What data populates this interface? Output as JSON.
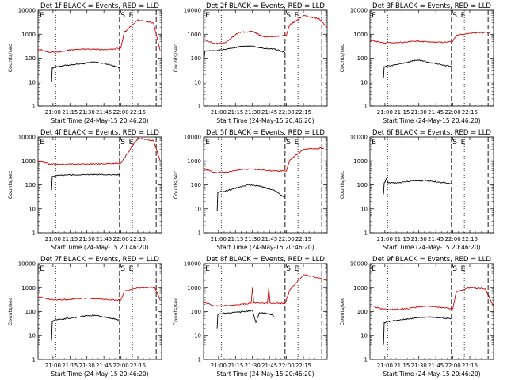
{
  "figure": {
    "x_ticks": [
      "21:00",
      "21:15",
      "21:30",
      "21:45",
      "22:00",
      "22:15"
    ],
    "y_ticks": [
      "1",
      "10",
      "100",
      "1000",
      "10000"
    ],
    "markers": [
      "E",
      "S",
      "E"
    ],
    "colors": {
      "events": "#000000",
      "lld": "#d00000"
    }
  },
  "chart_data": [
    {
      "type": "line",
      "title": "Det 1f BLACK = Events, RED = LLD",
      "xlabel": "Start Time (24-May-15 20:46:20)",
      "ylabel": "Counts/sec",
      "yscale": "log",
      "ylim": [
        1,
        10000
      ],
      "x_ticks": [
        "21:00",
        "21:15",
        "21:30",
        "21:45",
        "22:00",
        "22:15"
      ],
      "series": [
        {
          "values": [
            [
              20.98,
              10
            ],
            [
              20.99,
              40
            ],
            [
              21.05,
              45
            ],
            [
              21.3,
              55
            ],
            [
              21.45,
              60
            ],
            [
              21.62,
              70
            ],
            [
              21.82,
              55
            ],
            [
              21.98,
              40
            ]
          ]
        },
        {
          "values": [
            [
              20.78,
              240
            ],
            [
              20.95,
              175
            ],
            [
              21.1,
              185
            ],
            [
              21.3,
              230
            ],
            [
              21.48,
              240
            ],
            [
              21.62,
              230
            ],
            [
              21.82,
              230
            ],
            [
              22.0,
              260
            ],
            [
              22.05,
              1200
            ],
            [
              22.25,
              4000
            ],
            [
              22.48,
              3000
            ],
            [
              22.58,
              200
            ]
          ]
        }
      ]
    },
    {
      "type": "line",
      "title": "Det 2f BLACK = Events, RED = LLD",
      "xlabel": "Start Time (24-May-15 20:46:20)",
      "ylabel": "Counts/sec",
      "yscale": "log",
      "ylim": [
        1,
        10000
      ],
      "x_ticks": [
        "21:00",
        "21:15",
        "21:30",
        "21:45",
        "22:00",
        "22:15"
      ],
      "series": [
        {
          "values": [
            [
              20.78,
              60
            ],
            [
              20.8,
              200
            ],
            [
              21.05,
              220
            ],
            [
              21.3,
              300
            ],
            [
              21.5,
              320
            ],
            [
              21.65,
              260
            ],
            [
              21.82,
              240
            ],
            [
              21.98,
              170
            ]
          ]
        },
        {
          "values": [
            [
              20.78,
              600
            ],
            [
              20.95,
              400
            ],
            [
              21.1,
              450
            ],
            [
              21.3,
              1200
            ],
            [
              21.5,
              1300
            ],
            [
              21.65,
              800
            ],
            [
              21.82,
              800
            ],
            [
              22.0,
              900
            ],
            [
              22.05,
              2500
            ],
            [
              22.25,
              6000
            ],
            [
              22.48,
              4500
            ],
            [
              22.6,
              2000
            ]
          ]
        }
      ]
    },
    {
      "type": "line",
      "title": "Det 3f BLACK = Events, RED = LLD",
      "xlabel": "Start Time (24-May-15 20:46:20)",
      "ylabel": "Counts/sec",
      "yscale": "log",
      "ylim": [
        1,
        10000
      ],
      "x_ticks": [
        "21:00",
        "21:15",
        "21:30",
        "21:45",
        "22:00",
        "22:15"
      ],
      "series": [
        {
          "values": [
            [
              20.98,
              15
            ],
            [
              20.99,
              45
            ],
            [
              21.1,
              50
            ],
            [
              21.3,
              65
            ],
            [
              21.48,
              85
            ],
            [
              21.62,
              70
            ],
            [
              21.82,
              55
            ],
            [
              21.98,
              45
            ]
          ]
        },
        {
          "values": [
            [
              20.78,
              550
            ],
            [
              20.95,
              450
            ],
            [
              21.1,
              440
            ],
            [
              21.3,
              460
            ],
            [
              21.48,
              520
            ],
            [
              21.62,
              480
            ],
            [
              21.82,
              460
            ],
            [
              22.0,
              500
            ],
            [
              22.05,
              900
            ],
            [
              22.25,
              1100
            ],
            [
              22.55,
              1200
            ]
          ]
        }
      ]
    },
    {
      "type": "line",
      "title": "Det 4f BLACK = Events, RED = LLD",
      "xlabel": "Start Time (24-May-15 20:46:20)",
      "ylabel": "Counts/sec",
      "yscale": "log",
      "ylim": [
        1,
        10000
      ],
      "x_ticks": [
        "21:00",
        "21:15",
        "21:30",
        "21:45",
        "22:00",
        "22:15"
      ],
      "series": [
        {
          "values": [
            [
              20.98,
              60
            ],
            [
              20.99,
              230
            ],
            [
              21.1,
              250
            ],
            [
              21.3,
              260
            ],
            [
              21.5,
              270
            ],
            [
              21.7,
              265
            ],
            [
              21.98,
              260
            ]
          ]
        },
        {
          "values": [
            [
              20.78,
              1000
            ],
            [
              20.95,
              750
            ],
            [
              21.1,
              720
            ],
            [
              21.3,
              730
            ],
            [
              21.5,
              740
            ],
            [
              21.7,
              760
            ],
            [
              22.0,
              800
            ],
            [
              22.05,
              1300
            ],
            [
              22.25,
              9000
            ],
            [
              22.48,
              7000
            ],
            [
              22.58,
              1000
            ]
          ]
        }
      ]
    },
    {
      "type": "line",
      "title": "Det 5f BLACK = Events, RED = LLD",
      "xlabel": "Start Time (24-May-15 20:46:20)",
      "ylabel": "Counts/sec",
      "yscale": "log",
      "ylim": [
        1,
        10000
      ],
      "x_ticks": [
        "21:00",
        "21:15",
        "21:30",
        "21:45",
        "22:00",
        "22:15"
      ],
      "series": [
        {
          "values": [
            [
              20.98,
              8
            ],
            [
              20.99,
              50
            ],
            [
              21.1,
              55
            ],
            [
              21.3,
              80
            ],
            [
              21.45,
              100
            ],
            [
              21.62,
              85
            ],
            [
              21.82,
              60
            ],
            [
              21.98,
              30
            ]
          ]
        },
        {
          "values": [
            [
              20.78,
              450
            ],
            [
              20.95,
              330
            ],
            [
              21.1,
              340
            ],
            [
              21.3,
              420
            ],
            [
              21.48,
              470
            ],
            [
              21.62,
              430
            ],
            [
              21.82,
              380
            ],
            [
              22.0,
              380
            ],
            [
              22.05,
              1100
            ],
            [
              22.25,
              3000
            ],
            [
              22.55,
              3500
            ]
          ]
        }
      ]
    },
    {
      "type": "line",
      "title": "Det 6f BLACK = Events, RED = LLD",
      "xlabel": "Start Time (24-May-15 20:46:20)",
      "ylabel": "Counts/sec",
      "yscale": "log",
      "ylim": [
        1,
        10000
      ],
      "x_ticks": [
        "21:00",
        "21:15",
        "21:30",
        "21:45",
        "22:00",
        "22:15"
      ],
      "series": [
        {
          "values": [
            [
              20.98,
              40
            ],
            [
              20.99,
              120
            ],
            [
              21.02,
              180
            ],
            [
              21.05,
              120
            ],
            [
              21.2,
              120
            ],
            [
              21.4,
              150
            ],
            [
              21.6,
              150
            ],
            [
              21.8,
              130
            ],
            [
              21.98,
              110
            ]
          ]
        }
      ]
    },
    {
      "type": "line",
      "title": "Det 7f BLACK = Events, RED = LLD",
      "xlabel": "Start Time (24-May-15 20:46:20)",
      "ylabel": "Counts/sec",
      "yscale": "log",
      "ylim": [
        1,
        10000
      ],
      "x_ticks": [
        "21:00",
        "21:15",
        "21:30",
        "21:45",
        "22:00",
        "22:15"
      ],
      "series": [
        {
          "values": [
            [
              20.98,
              6
            ],
            [
              20.99,
              40
            ],
            [
              21.05,
              45
            ],
            [
              21.3,
              55
            ],
            [
              21.45,
              65
            ],
            [
              21.62,
              70
            ],
            [
              21.82,
              55
            ],
            [
              21.98,
              45
            ]
          ]
        },
        {
          "values": [
            [
              20.78,
              420
            ],
            [
              20.95,
              320
            ],
            [
              21.1,
              310
            ],
            [
              21.3,
              330
            ],
            [
              21.48,
              360
            ],
            [
              21.62,
              330
            ],
            [
              21.82,
              320
            ],
            [
              22.0,
              300
            ],
            [
              22.05,
              700
            ],
            [
              22.25,
              1000
            ],
            [
              22.5,
              1000
            ],
            [
              22.58,
              300
            ]
          ]
        }
      ]
    },
    {
      "type": "line",
      "title": "Det 8f BLACK = Events, RED = LLD",
      "xlabel": "Start Time (24-May-15 20:46:20)",
      "ylabel": "Counts/sec",
      "yscale": "log",
      "ylim": [
        1,
        10000
      ],
      "x_ticks": [
        "21:00",
        "21:15",
        "21:30",
        "21:45",
        "22:00",
        "22:15"
      ],
      "series": [
        {
          "values": [
            [
              20.98,
              20
            ],
            [
              20.99,
              80
            ],
            [
              21.1,
              85
            ],
            [
              21.3,
              95
            ],
            [
              21.5,
              110
            ],
            [
              21.55,
              35
            ],
            [
              21.6,
              90
            ],
            [
              21.75,
              80
            ],
            [
              21.82,
              65
            ]
          ]
        },
        {
          "values": [
            [
              20.78,
              250
            ],
            [
              20.95,
              170
            ],
            [
              21.1,
              175
            ],
            [
              21.3,
              190
            ],
            [
              21.48,
              220
            ],
            [
              21.5,
              1000
            ],
            [
              21.52,
              230
            ],
            [
              21.72,
              220
            ],
            [
              21.74,
              1000
            ],
            [
              21.76,
              220
            ],
            [
              21.98,
              220
            ],
            [
              22.05,
              800
            ],
            [
              22.25,
              3500
            ],
            [
              22.48,
              2500
            ],
            [
              22.6,
              2000
            ]
          ]
        }
      ]
    },
    {
      "type": "line",
      "title": "Det 9f BLACK = Events, RED = LLD",
      "xlabel": "Start Time (24-May-15 20:46:20)",
      "ylabel": "Counts/sec",
      "yscale": "log",
      "ylim": [
        1,
        10000
      ],
      "x_ticks": [
        "21:00",
        "21:15",
        "21:30",
        "21:45",
        "22:00",
        "22:15"
      ],
      "series": [
        {
          "values": [
            [
              20.98,
              4
            ],
            [
              20.99,
              35
            ],
            [
              21.1,
              40
            ],
            [
              21.3,
              48
            ],
            [
              21.48,
              55
            ],
            [
              21.62,
              60
            ],
            [
              21.82,
              55
            ],
            [
              21.98,
              50
            ]
          ]
        },
        {
          "values": [
            [
              20.78,
              180
            ],
            [
              20.95,
              130
            ],
            [
              21.1,
              120
            ],
            [
              21.3,
              130
            ],
            [
              21.48,
              155
            ],
            [
              21.62,
              170
            ],
            [
              21.82,
              150
            ],
            [
              22.0,
              130
            ],
            [
              22.05,
              650
            ],
            [
              22.25,
              1000
            ],
            [
              22.48,
              900
            ],
            [
              22.6,
              150
            ]
          ]
        }
      ]
    }
  ]
}
